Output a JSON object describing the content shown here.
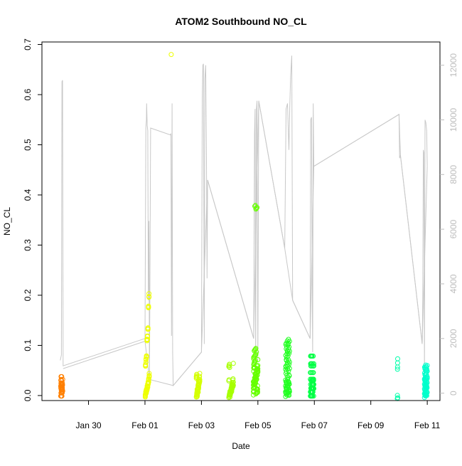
{
  "chart_data": {
    "type": "scatter",
    "title": "ATOM2 Southbound NO_CL",
    "xlabel": "Date",
    "ylabel": "NO_CL",
    "x_ticks": [
      "Jan 30",
      "Feb 01",
      "Feb 03",
      "Feb 05",
      "Feb 07",
      "Feb 09",
      "Feb 11"
    ],
    "x_tick_days": [
      30,
      32,
      34,
      36,
      38,
      40,
      42
    ],
    "xlim_days": [
      28.35,
      42.45
    ],
    "y_ticks": [
      "0.0",
      "0.1",
      "0.2",
      "0.3",
      "0.4",
      "0.5",
      "0.6",
      "0.7"
    ],
    "y_tick_values": [
      0,
      0.1,
      0.2,
      0.3,
      0.4,
      0.5,
      0.6,
      0.7
    ],
    "ylim": [
      -0.01,
      0.705
    ],
    "right_axis": {
      "ticks": [
        "0",
        "2000",
        "4000",
        "6000",
        "8000",
        "10000",
        "12000"
      ],
      "tick_values": [
        0,
        2000,
        4000,
        6000,
        8000,
        10000,
        12000
      ],
      "ylim": [
        -270,
        12850
      ],
      "color": "#bdbdbd"
    },
    "grid": false,
    "legend": "none",
    "point_clusters": [
      {
        "day": 29.05,
        "spread": 0.07,
        "count": 30,
        "color": "#ff7f00",
        "values": [
          0.003,
          0.006,
          0.009,
          0.012,
          0.015,
          0.018,
          0.021,
          0.024,
          0.028,
          0.032,
          0.036
        ]
      },
      {
        "day": 32.08,
        "spread": 0.14,
        "count": 60,
        "color": "#eeff00",
        "values": [
          0.001,
          0.004,
          0.008,
          0.012,
          0.016,
          0.02,
          0.025,
          0.03,
          0.04,
          0.06,
          0.07,
          0.08,
          0.11,
          0.115,
          0.135,
          0.175,
          0.2
        ]
      },
      {
        "day": 33.88,
        "spread": 0.12,
        "count": 50,
        "color": "#d4ff00",
        "values": [
          0.001,
          0.005,
          0.01,
          0.015,
          0.02,
          0.025,
          0.03,
          0.035,
          0.04
        ]
      },
      {
        "day": 35.05,
        "spread": 0.16,
        "count": 45,
        "color": "#a6ff00",
        "values": [
          0.0,
          0.003,
          0.006,
          0.01,
          0.014,
          0.018,
          0.022,
          0.03,
          0.06
        ]
      },
      {
        "day": 35.92,
        "spread": 0.16,
        "count": 80,
        "color": "#66ff00",
        "values": [
          0.005,
          0.01,
          0.015,
          0.02,
          0.025,
          0.03,
          0.035,
          0.04,
          0.045,
          0.05,
          0.055,
          0.06,
          0.07,
          0.08,
          0.09,
          0.375
        ]
      },
      {
        "day": 37.05,
        "spread": 0.14,
        "count": 80,
        "color": "#22ff22",
        "values": [
          0.002,
          0.006,
          0.01,
          0.015,
          0.02,
          0.025,
          0.03,
          0.04,
          0.05,
          0.06,
          0.07,
          0.08,
          0.09,
          0.1,
          0.108
        ]
      },
      {
        "day": 37.92,
        "spread": 0.12,
        "count": 60,
        "color": "#00ff44",
        "values": [
          0.003,
          0.008,
          0.012,
          0.017,
          0.022,
          0.027,
          0.035,
          0.045,
          0.055,
          0.065,
          0.077
        ]
      },
      {
        "day": 40.95,
        "spread": 0.02,
        "count": 7,
        "color": "#00ffaa",
        "values": [
          -0.002,
          0.001,
          0.05,
          0.06,
          0.065,
          0.07
        ]
      },
      {
        "day": 41.95,
        "spread": 0.1,
        "count": 70,
        "color": "#00ffcc",
        "values": [
          0.0,
          0.003,
          0.006,
          0.01,
          0.014,
          0.018,
          0.022,
          0.026,
          0.03,
          0.035,
          0.04,
          0.045,
          0.05,
          0.055,
          0.06
        ]
      }
    ],
    "outlier_points": [
      {
        "day": 32.93,
        "value": 0.68,
        "color": "#eeff00"
      }
    ],
    "altitude_line": {
      "color": "#c8c8c8",
      "points": [
        [
          29.0,
          1200
        ],
        [
          29.04,
          1400
        ],
        [
          29.06,
          11400
        ],
        [
          29.08,
          11450
        ],
        [
          29.1,
          1000
        ],
        [
          32.0,
          2000
        ],
        [
          32.03,
          9700
        ],
        [
          32.05,
          10000
        ],
        [
          32.06,
          10600
        ],
        [
          32.08,
          9800
        ],
        [
          32.1,
          9600
        ],
        [
          32.12,
          3400
        ],
        [
          32.14,
          6300
        ],
        [
          32.16,
          500
        ],
        [
          32.2,
          9700
        ],
        [
          32.9,
          9450
        ],
        [
          32.92,
          9500
        ],
        [
          32.94,
          2100
        ],
        [
          32.96,
          10600
        ],
        [
          32.98,
          1500
        ],
        [
          33.0,
          280
        ],
        [
          34.0,
          1500
        ],
        [
          34.03,
          10800
        ],
        [
          34.05,
          12000
        ],
        [
          34.07,
          12050
        ],
        [
          34.1,
          1800
        ],
        [
          34.12,
          11500
        ],
        [
          34.15,
          12000
        ],
        [
          34.18,
          8500
        ],
        [
          34.2,
          4200
        ],
        [
          34.22,
          7800
        ],
        [
          35.85,
          2000
        ],
        [
          35.88,
          9500
        ],
        [
          35.9,
          10400
        ],
        [
          35.92,
          1000
        ],
        [
          35.95,
          10400
        ],
        [
          35.97,
          10700
        ],
        [
          36.0,
          1200
        ],
        [
          36.03,
          10700
        ],
        [
          36.95,
          5300
        ],
        [
          37.0,
          10400
        ],
        [
          37.05,
          10600
        ],
        [
          37.08,
          9500
        ],
        [
          37.1,
          8900
        ],
        [
          37.13,
          10500
        ],
        [
          37.16,
          11600
        ],
        [
          37.2,
          12350
        ],
        [
          37.23,
          3400
        ],
        [
          37.85,
          2000
        ],
        [
          37.87,
          10000
        ],
        [
          37.9,
          10100
        ],
        [
          37.92,
          4000
        ],
        [
          37.94,
          1500
        ],
        [
          37.96,
          10600
        ],
        [
          37.98,
          8300
        ],
        [
          41.0,
          10200
        ],
        [
          41.02,
          8600
        ],
        [
          41.05,
          8700
        ],
        [
          41.82,
          1800
        ],
        [
          41.84,
          3400
        ],
        [
          41.86,
          8900
        ],
        [
          41.88,
          8800
        ],
        [
          41.9,
          600
        ],
        [
          41.92,
          10000
        ],
        [
          41.95,
          9900
        ],
        [
          41.98,
          9600
        ],
        [
          42.0,
          8300
        ]
      ],
      "trail": [
        [
          29.1,
          900
        ],
        [
          32.0,
          1900
        ],
        [
          32.16,
          500
        ],
        [
          33.0,
          280
        ],
        [
          34.0,
          1500
        ],
        [
          34.22,
          7800
        ],
        [
          35.85,
          2000
        ],
        [
          36.03,
          10700
        ],
        [
          36.95,
          5300
        ],
        [
          37.23,
          3400
        ],
        [
          37.85,
          2000
        ],
        [
          37.98,
          8300
        ],
        [
          41.0,
          10200
        ],
        [
          41.05,
          8700
        ],
        [
          41.82,
          1800
        ],
        [
          42.0,
          8300
        ]
      ]
    }
  }
}
